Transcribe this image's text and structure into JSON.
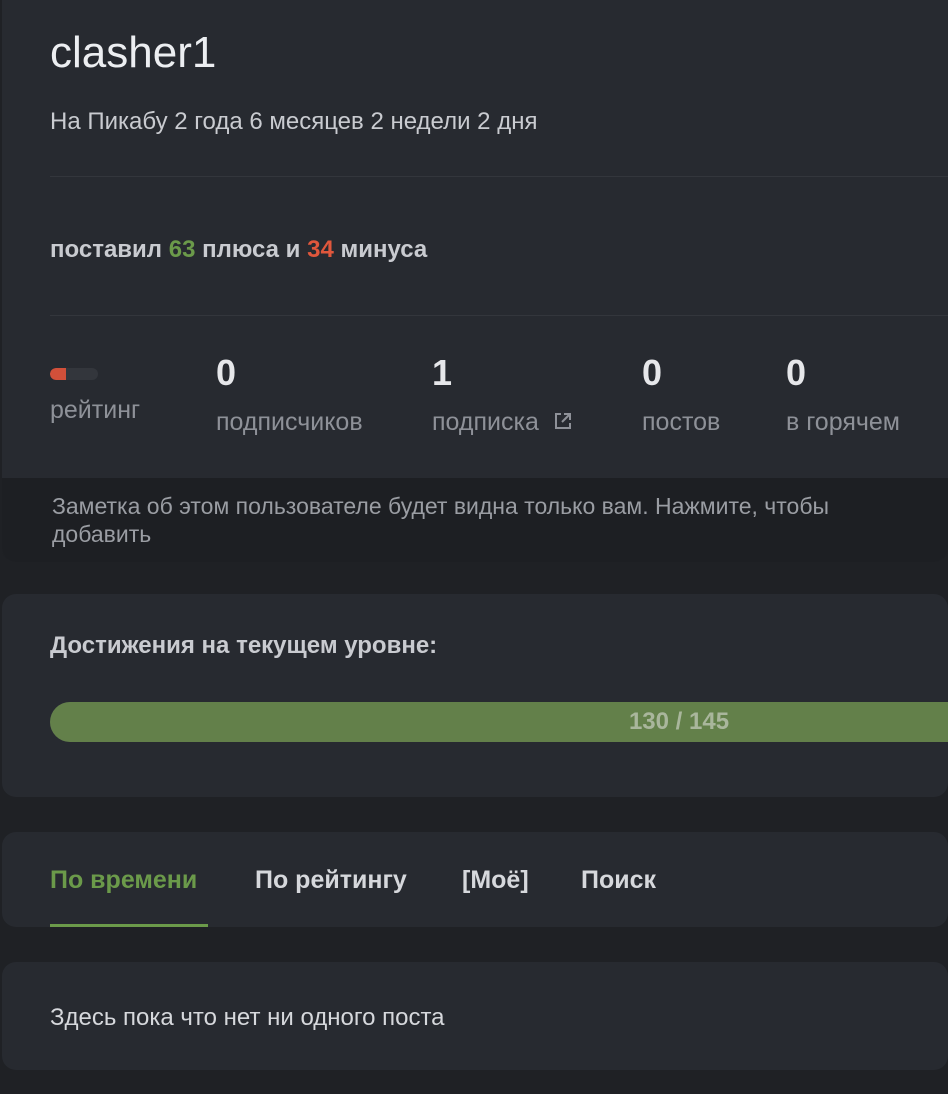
{
  "profile": {
    "username": "clasher1",
    "since": "На Пикабу 2 года 6 месяцев 2 недели 2 дня",
    "votes": {
      "prefix": "поставил",
      "plus": "63",
      "middle": "плюса и",
      "minus": "34",
      "suffix": "минуса"
    },
    "stats": [
      {
        "value": "",
        "label": "рейтинг"
      },
      {
        "value": "0",
        "label": "подписчиков"
      },
      {
        "value": "1",
        "label": "подписка"
      },
      {
        "value": "0",
        "label": "постов"
      },
      {
        "value": "0",
        "label": "в горячем"
      }
    ],
    "note": "Заметка об этом пользователе будет видна только вам. Нажмите, чтобы добавить"
  },
  "achievements": {
    "title": "Достижения на текущем уровне:",
    "current": 130,
    "total": 145,
    "text": "130 / 145"
  },
  "tabs": [
    {
      "label": "По времени",
      "active": true
    },
    {
      "label": "По рейтингу"
    },
    {
      "label": "[Моё]"
    },
    {
      "label": "Поиск"
    }
  ],
  "posts": {
    "empty": "Здесь пока что нет ни одного поста"
  },
  "colors": {
    "accent": "#6b9a4a",
    "minus": "#e0573c"
  }
}
